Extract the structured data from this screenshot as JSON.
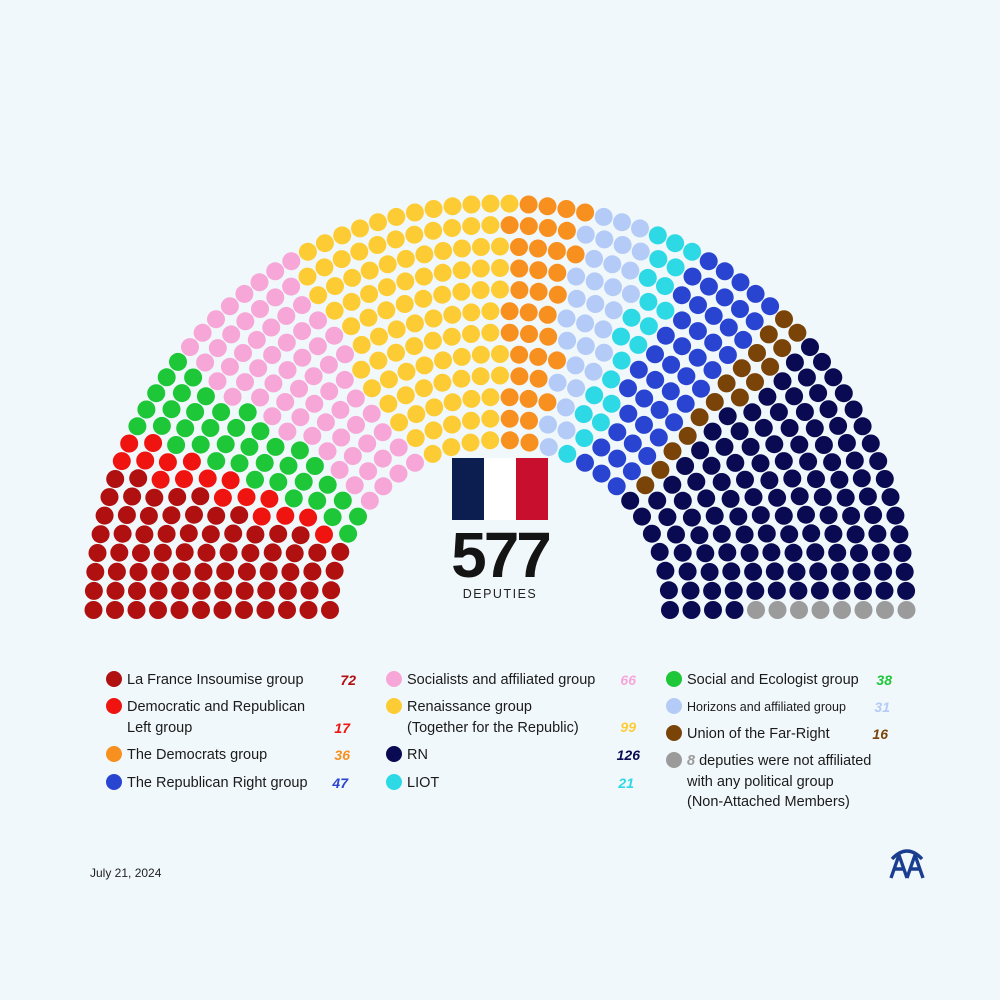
{
  "center": {
    "total": "577",
    "label": "DEPUTIES"
  },
  "flag_colors": [
    "#0b1e4f",
    "#ffffff",
    "#c8102e"
  ],
  "date": "July 21, 2024",
  "logo": {
    "icon": "aa-agency-logo",
    "color": "#1a3d8f"
  },
  "chart_data": {
    "type": "parliament-hemicycle",
    "total_seats": 577,
    "series": [
      {
        "name": "La France Insoumise group",
        "seats": 72,
        "display": "72",
        "color": "#b0100f"
      },
      {
        "name": "Democratic and Republican Left group",
        "seats": 17,
        "display": "17",
        "color": "#f01410"
      },
      {
        "name": "Social and Ecologist group",
        "seats": 38,
        "display": "38",
        "color": "#1ec738"
      },
      {
        "name": "Socialists and affiliated group",
        "seats": 66,
        "display": "66",
        "color": "#f7a6d8"
      },
      {
        "name": "Renaissance group (Together for the Republic)",
        "seats": 99,
        "display": "99",
        "color": "#fdcc35"
      },
      {
        "name": "The Democrats group",
        "seats": 36,
        "display": "36",
        "color": "#f8901f"
      },
      {
        "name": "Horizons and affiliated group",
        "seats": 31,
        "display": "31",
        "color": "#b4cbf7"
      },
      {
        "name": "LIOT",
        "seats": 21,
        "display": "21",
        "color": "#2ed9e6"
      },
      {
        "name": "The Republican Right group",
        "seats": 47,
        "display": "47",
        "color": "#2a44d2"
      },
      {
        "name": "Union of the Far-Right",
        "seats": 16,
        "display": "16",
        "color": "#7a4409"
      },
      {
        "name": "RN",
        "seats": 126,
        "display": "126",
        "color": "#0a0a52"
      },
      {
        "name": "Non-Attached Members",
        "seats": 8,
        "display": "8",
        "color": "#9b9b9b"
      }
    ]
  },
  "legend": {
    "col1": [
      {
        "lines": [
          "La France Insoumise group"
        ],
        "count": "72",
        "color": "#b0100f"
      },
      {
        "lines": [
          "Democratic and Republican",
          "Left group"
        ],
        "count": "17",
        "color": "#f01410"
      },
      {
        "lines": [
          "The Democrats group"
        ],
        "count": "36",
        "color": "#f8901f"
      },
      {
        "lines": [
          "The Republican Right group"
        ],
        "count": "47",
        "color": "#2a44d2"
      }
    ],
    "col2": [
      {
        "lines": [
          "Socialists and affiliated group"
        ],
        "count": "66",
        "color": "#f7a6d8"
      },
      {
        "lines": [
          "Renaissance group",
          "(Together for the Republic)"
        ],
        "count": "99",
        "color": "#fdcc35"
      },
      {
        "lines": [
          "RN"
        ],
        "count": "126",
        "color": "#0a0a52"
      },
      {
        "lines": [
          "LIOT"
        ],
        "count": "21",
        "color": "#2ed9e6"
      }
    ],
    "col3": [
      {
        "lines": [
          "Social and Ecologist group"
        ],
        "count": "38",
        "color": "#1ec738"
      },
      {
        "lines": [
          "Horizons and affiliated group"
        ],
        "count": "31",
        "color": "#b4cbf7"
      },
      {
        "lines": [
          "Union of the Far-Right"
        ],
        "count": "16",
        "color": "#7a4409"
      },
      {
        "lines": [
          "deputies were not affiliated",
          "with any political group",
          "(Non-Attached Members)"
        ],
        "count": "8",
        "color": "#9b9b9b"
      }
    ]
  }
}
